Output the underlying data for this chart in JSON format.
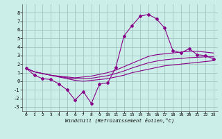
{
  "x": [
    0,
    1,
    2,
    3,
    4,
    5,
    6,
    7,
    8,
    9,
    10,
    11,
    12,
    13,
    14,
    15,
    16,
    17,
    18,
    19,
    20,
    21,
    22,
    23
  ],
  "y_main": [
    1.5,
    0.7,
    0.3,
    0.2,
    -0.3,
    -1.0,
    -2.2,
    -1.2,
    -2.6,
    -0.3,
    -0.2,
    1.6,
    5.3,
    6.5,
    7.6,
    7.8,
    7.3,
    6.2,
    3.6,
    3.3,
    3.8,
    3.1,
    3.0,
    2.6
  ],
  "y_line1": [
    1.5,
    1.1,
    0.9,
    0.7,
    0.5,
    0.3,
    0.1,
    0.0,
    0.1,
    0.2,
    0.3,
    0.5,
    0.7,
    1.0,
    1.2,
    1.4,
    1.6,
    1.8,
    1.9,
    2.0,
    2.1,
    2.2,
    2.3,
    2.4
  ],
  "y_line2": [
    1.5,
    1.1,
    0.9,
    0.7,
    0.6,
    0.5,
    0.4,
    0.5,
    0.6,
    0.8,
    1.0,
    1.3,
    1.7,
    2.1,
    2.5,
    2.9,
    3.1,
    3.2,
    3.3,
    3.4,
    3.5,
    3.5,
    3.4,
    3.3
  ],
  "y_line3": [
    1.5,
    1.1,
    0.9,
    0.7,
    0.55,
    0.4,
    0.3,
    0.3,
    0.35,
    0.5,
    0.65,
    0.9,
    1.2,
    1.55,
    1.85,
    2.15,
    2.35,
    2.5,
    2.6,
    2.65,
    2.75,
    2.8,
    2.85,
    2.85
  ],
  "line_color": "#880088",
  "bg_color": "#cceee8",
  "grid_color": "#99bbbb",
  "xlabel": "Windchill (Refroidissement éolien,°C)",
  "ylim": [
    -3.5,
    9.0
  ],
  "xlim": [
    -0.5,
    23.5
  ],
  "yticks": [
    -3,
    -2,
    -1,
    0,
    1,
    2,
    3,
    4,
    5,
    6,
    7,
    8
  ],
  "xticks": [
    0,
    1,
    2,
    3,
    4,
    5,
    6,
    7,
    8,
    9,
    10,
    11,
    12,
    13,
    14,
    15,
    16,
    17,
    18,
    19,
    20,
    21,
    22,
    23
  ]
}
